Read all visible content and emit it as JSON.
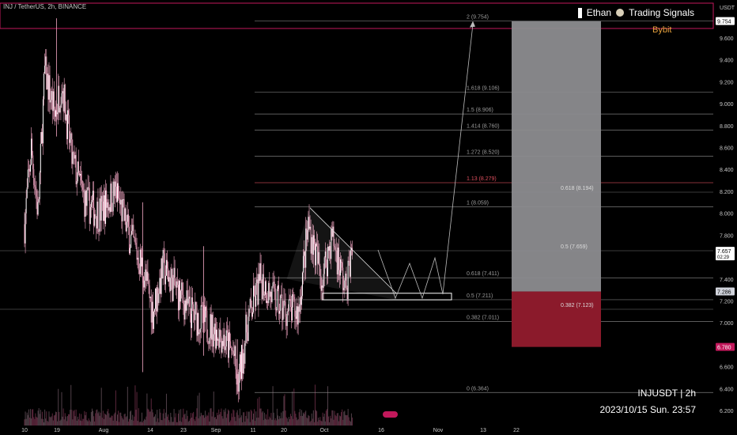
{
  "header": {
    "symbol_line": "INJ / TetherUS, 2h, BINANCE"
  },
  "brand": {
    "name": "Ethan",
    "channel": "Trading Signals",
    "exchange": "Bybit"
  },
  "stamp": {
    "pair": "INJUSDT | 2h",
    "datetime": "2023/10/15 Sun. 23:57"
  },
  "axis": {
    "unit": "USDT",
    "ticks": [
      "9.600",
      "9.400",
      "9.200",
      "9.000",
      "8.800",
      "8.600",
      "8.400",
      "8.200",
      "8.000",
      "7.800",
      "7.600",
      "7.400",
      "7.200",
      "7.000",
      "6.800",
      "6.600",
      "6.400",
      "6.200"
    ],
    "x_ticks": [
      "10",
      "19",
      "Aug",
      "14",
      "23",
      "Sep",
      "11",
      "20",
      "Oct",
      "16",
      "Nov",
      "13",
      "22"
    ],
    "badges": [
      {
        "label": "9.754",
        "value": 9.754,
        "bg": "#ffffff",
        "fg": "#000000"
      },
      {
        "label": "7.657",
        "sub": "02:29",
        "value": 7.657,
        "bg": "#ffffff",
        "fg": "#000000"
      },
      {
        "label": "7.286",
        "value": 7.286,
        "bg": "#d1d4dc",
        "fg": "#000000"
      },
      {
        "label": "6.780",
        "value": 6.78,
        "bg": "#c2185b",
        "fg": "#ffffff"
      }
    ]
  },
  "fib": [
    {
      "label": "2 (9.754)",
      "value": 9.754
    },
    {
      "label": "1.618 (9.106)",
      "value": 9.106
    },
    {
      "label": "1.5 (8.906)",
      "value": 8.906
    },
    {
      "label": "1.414 (8.760)",
      "value": 8.76
    },
    {
      "label": "1.272 (8.520)",
      "value": 8.52
    },
    {
      "label": "1.13 (8.279)",
      "value": 8.279,
      "color": "#e0505f"
    },
    {
      "label": "1 (8.059)",
      "value": 8.059
    },
    {
      "label": "0.618 (7.411)",
      "value": 7.411
    },
    {
      "label": "0.5 (7.211)",
      "value": 7.211
    },
    {
      "label": "0.382 (7.011)",
      "value": 7.011
    },
    {
      "label": "0 (6.364)",
      "value": 6.364
    }
  ],
  "position_box": {
    "labels": [
      {
        "label": "0.618 (8.194)",
        "value": 8.194
      },
      {
        "label": "0.5 (7.659)",
        "value": 7.659
      },
      {
        "label": "0.382 (7.123)",
        "value": 7.123
      }
    ],
    "target": 9.754,
    "entry": 7.286,
    "stop": 6.78,
    "profit_color": "#8c8c8f",
    "loss_color": "#8b1a2b"
  },
  "colors": {
    "candle": "#f3a7c4",
    "accent": "#c2185b"
  },
  "chart_data": {
    "type": "candlestick",
    "title": "INJ / TetherUS, 2h, BINANCE",
    "ylabel": "USDT",
    "ylim": [
      6.15,
      9.78
    ],
    "x_tick_labels": [
      "10",
      "19",
      "Aug",
      "14",
      "23",
      "Sep",
      "11",
      "20",
      "Oct",
      "16",
      "Nov",
      "13",
      "22"
    ],
    "close_path": [
      {
        "t": "Jul 10",
        "v": 7.9
      },
      {
        "t": "Jul 12",
        "v": 8.6
      },
      {
        "t": "Jul 14",
        "v": 8.0
      },
      {
        "t": "Jul 16",
        "v": 9.3
      },
      {
        "t": "Jul 19",
        "v": 8.9
      },
      {
        "t": "Jul 21",
        "v": 9.2
      },
      {
        "t": "Jul 24",
        "v": 8.5
      },
      {
        "t": "Jul 28",
        "v": 8.1
      },
      {
        "t": "Aug 1",
        "v": 8.0
      },
      {
        "t": "Aug 6",
        "v": 8.2
      },
      {
        "t": "Aug 10",
        "v": 7.8
      },
      {
        "t": "Aug 14",
        "v": 7.5
      },
      {
        "t": "Aug 17",
        "v": 7.1
      },
      {
        "t": "Aug 20",
        "v": 7.5
      },
      {
        "t": "Aug 24",
        "v": 7.3
      },
      {
        "t": "Aug 28",
        "v": 7.1
      },
      {
        "t": "Sep 1",
        "v": 7.0
      },
      {
        "t": "Sep 6",
        "v": 6.9
      },
      {
        "t": "Sep 10",
        "v": 6.7
      },
      {
        "t": "Sep 11",
        "v": 6.4
      },
      {
        "t": "Sep 14",
        "v": 7.0
      },
      {
        "t": "Sep 18",
        "v": 7.4
      },
      {
        "t": "Sep 22",
        "v": 7.2
      },
      {
        "t": "Sep 26",
        "v": 7.1
      },
      {
        "t": "Sep 29",
        "v": 7.1
      },
      {
        "t": "Oct 2",
        "v": 7.9
      },
      {
        "t": "Oct 6",
        "v": 7.4
      },
      {
        "t": "Oct 9",
        "v": 7.8
      },
      {
        "t": "Oct 13",
        "v": 7.3
      },
      {
        "t": "Oct 15",
        "v": 7.66
      }
    ],
    "triangle": {
      "top": [
        {
          "t": "Oct 2",
          "v": 8.05
        },
        {
          "t": "Oct 28",
          "v": 7.27
        }
      ],
      "bottom": [
        {
          "t": "Sep 27",
          "v": 7.21
        },
        {
          "t": "Oct 28",
          "v": 7.21
        }
      ]
    },
    "projection_peak": 9.754
  }
}
